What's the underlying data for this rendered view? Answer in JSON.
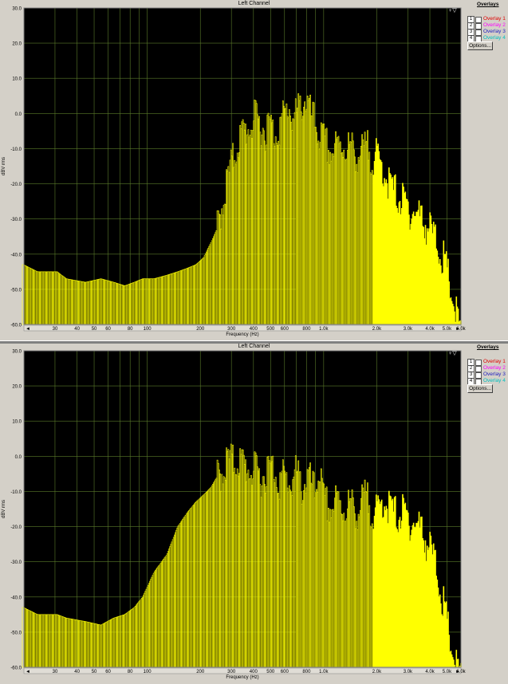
{
  "panels": [
    {
      "title": "Left Channel",
      "ylabel": "dBV rms",
      "xlabel": "Frequency (Hz)",
      "overlays_header": "Overlays",
      "overlays": [
        {
          "num": "1",
          "label": "Overlay 1",
          "color": "#e00000"
        },
        {
          "num": "2",
          "label": "Overlay 2",
          "color": "#ff00ff"
        },
        {
          "num": "3",
          "label": "Overlay 3",
          "color": "#2020c0"
        },
        {
          "num": "4",
          "label": "Overlay 4",
          "color": "#00c0c0"
        }
      ],
      "options_label": "Options..."
    },
    {
      "title": "Left Channel",
      "ylabel": "dBV rms",
      "xlabel": "Frequency (Hz)",
      "overlays_header": "Overlays",
      "overlays": [
        {
          "num": "1",
          "label": "Overlay 1",
          "color": "#e00000"
        },
        {
          "num": "2",
          "label": "Overlay 2",
          "color": "#ff00ff"
        },
        {
          "num": "3",
          "label": "Overlay 3",
          "color": "#2020c0"
        },
        {
          "num": "4",
          "label": "Overlay 4",
          "color": "#00c0c0"
        }
      ],
      "options_label": "Options..."
    }
  ],
  "colors": {
    "background": "#000000",
    "grid": "#5a7a2a",
    "trace": "#ffff00",
    "fill_low": "#3a3a00"
  },
  "chart_data": [
    {
      "type": "bar",
      "x_scale": "log",
      "xlim": [
        20,
        6000
      ],
      "ylim": [
        -60,
        30
      ],
      "yticks": [
        "30.0",
        "20.0",
        "10.0",
        "0.0",
        "-10.0",
        "-20.0",
        "-30.0",
        "-40.0",
        "-50.0",
        "-60.0"
      ],
      "xticks": [
        "30",
        "40",
        "50",
        "60",
        "80",
        "100",
        "200",
        "300",
        "400",
        "500",
        "600",
        "800",
        "1.0k",
        "2.0k",
        "3.0k",
        "4.0k",
        "5.0k",
        "6.0k"
      ],
      "xtick_values": [
        30,
        40,
        50,
        60,
        80,
        100,
        200,
        300,
        400,
        500,
        600,
        800,
        1000,
        2000,
        3000,
        4000,
        5000,
        6000
      ],
      "grid": true,
      "spectrum": [
        [
          20,
          -40
        ],
        [
          24,
          -42
        ],
        [
          31,
          -42
        ],
        [
          35,
          -44
        ],
        [
          45,
          -45
        ],
        [
          55,
          -44
        ],
        [
          65,
          -45
        ],
        [
          75,
          -46
        ],
        [
          85,
          -45
        ],
        [
          95,
          -44
        ],
        [
          110,
          -44
        ],
        [
          130,
          -43
        ],
        [
          150,
          -42
        ],
        [
          170,
          -41
        ],
        [
          190,
          -40
        ],
        [
          210,
          -38
        ],
        [
          230,
          -34
        ],
        [
          250,
          -30
        ],
        [
          270,
          -22
        ],
        [
          290,
          -15
        ],
        [
          310,
          -10
        ],
        [
          330,
          -5
        ],
        [
          350,
          -3
        ],
        [
          380,
          -1
        ],
        [
          410,
          1
        ],
        [
          440,
          0
        ],
        [
          470,
          -2
        ],
        [
          500,
          0
        ],
        [
          530,
          -3
        ],
        [
          560,
          -1
        ],
        [
          600,
          2
        ],
        [
          640,
          5
        ],
        [
          680,
          1
        ],
        [
          720,
          3
        ],
        [
          760,
          6
        ],
        [
          800,
          7
        ],
        [
          850,
          2
        ],
        [
          900,
          0
        ],
        [
          950,
          -3
        ],
        [
          1000,
          -5
        ],
        [
          1100,
          -8
        ],
        [
          1200,
          -7
        ],
        [
          1300,
          -6
        ],
        [
          1400,
          -7
        ],
        [
          1500,
          -8
        ],
        [
          1600,
          -9
        ],
        [
          1700,
          -8
        ],
        [
          1800,
          -7
        ],
        [
          1900,
          -9
        ],
        [
          2000,
          -10
        ],
        [
          2200,
          -13
        ],
        [
          2400,
          -18
        ],
        [
          2600,
          -20
        ],
        [
          2800,
          -22
        ],
        [
          3000,
          -24
        ],
        [
          3300,
          -25
        ],
        [
          3600,
          -27
        ],
        [
          3900,
          -29
        ],
        [
          4200,
          -32
        ],
        [
          4500,
          -35
        ],
        [
          4800,
          -39
        ],
        [
          5100,
          -44
        ],
        [
          5400,
          -50
        ],
        [
          5700,
          -55
        ],
        [
          6000,
          -60
        ]
      ]
    },
    {
      "type": "bar",
      "x_scale": "log",
      "xlim": [
        20,
        6000
      ],
      "ylim": [
        -60,
        30
      ],
      "yticks": [
        "30.0",
        "20.0",
        "10.0",
        "0.0",
        "-10.0",
        "-20.0",
        "-30.0",
        "-40.0",
        "-50.0",
        "-60.0"
      ],
      "xticks": [
        "30",
        "40",
        "50",
        "60",
        "80",
        "100",
        "200",
        "300",
        "400",
        "500",
        "600",
        "800",
        "1.0k",
        "2.0k",
        "3.0k",
        "4.0k",
        "5.0k",
        "6.0k"
      ],
      "xtick_values": [
        30,
        40,
        50,
        60,
        80,
        100,
        200,
        300,
        400,
        500,
        600,
        800,
        1000,
        2000,
        3000,
        4000,
        5000,
        6000
      ],
      "grid": true,
      "spectrum": [
        [
          20,
          -40
        ],
        [
          24,
          -42
        ],
        [
          31,
          -42
        ],
        [
          35,
          -43
        ],
        [
          45,
          -44
        ],
        [
          55,
          -45
        ],
        [
          65,
          -43
        ],
        [
          75,
          -42
        ],
        [
          85,
          -40
        ],
        [
          95,
          -37
        ],
        [
          110,
          -30
        ],
        [
          130,
          -25
        ],
        [
          150,
          -17
        ],
        [
          170,
          -13
        ],
        [
          190,
          -10
        ],
        [
          210,
          -8
        ],
        [
          230,
          -6
        ],
        [
          250,
          -3
        ],
        [
          270,
          -1
        ],
        [
          290,
          2
        ],
        [
          310,
          1
        ],
        [
          330,
          2
        ],
        [
          360,
          0
        ],
        [
          390,
          -1
        ],
        [
          420,
          -2
        ],
        [
          450,
          -3
        ],
        [
          480,
          -1
        ],
        [
          520,
          0
        ],
        [
          560,
          -4
        ],
        [
          600,
          -3
        ],
        [
          650,
          -5
        ],
        [
          700,
          -2
        ],
        [
          760,
          -6
        ],
        [
          820,
          -3
        ],
        [
          900,
          -8
        ],
        [
          950,
          0
        ],
        [
          1000,
          -10
        ],
        [
          1100,
          -12
        ],
        [
          1200,
          -10
        ],
        [
          1300,
          -12
        ],
        [
          1400,
          -11
        ],
        [
          1500,
          -12
        ],
        [
          1600,
          -13
        ],
        [
          1700,
          -9
        ],
        [
          1800,
          -10
        ],
        [
          1900,
          -12
        ],
        [
          2000,
          -14
        ],
        [
          2200,
          -9
        ],
        [
          2400,
          -12
        ],
        [
          2600,
          -14
        ],
        [
          2800,
          -13
        ],
        [
          3000,
          -15
        ],
        [
          3300,
          -16
        ],
        [
          3600,
          -18
        ],
        [
          3900,
          -22
        ],
        [
          4200,
          -26
        ],
        [
          4500,
          -32
        ],
        [
          4800,
          -40
        ],
        [
          5100,
          -47
        ],
        [
          5400,
          -53
        ],
        [
          5700,
          -58
        ],
        [
          6000,
          -60
        ]
      ]
    }
  ]
}
